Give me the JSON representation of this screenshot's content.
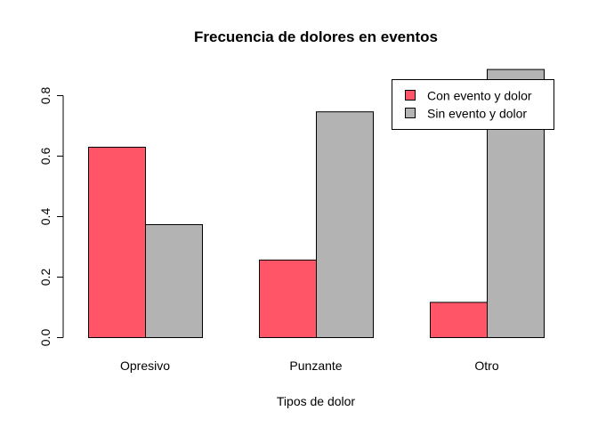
{
  "chart_data": {
    "type": "bar",
    "title": "Frecuencia de dolores en eventos",
    "xlabel": "Tipos de dolor",
    "ylabel": "",
    "categories": [
      "Opresivo",
      "Punzante",
      "Otro"
    ],
    "series": [
      {
        "name": "Con evento y dolor",
        "values": [
          0.628,
          0.255,
          0.115
        ],
        "color": "#FF5566"
      },
      {
        "name": "Sin evento y dolor",
        "values": [
          0.372,
          0.745,
          0.885
        ],
        "color": "#B3B3B3"
      }
    ],
    "yticks": [
      "0.0",
      "0.2",
      "0.4",
      "0.6",
      "0.8"
    ],
    "ylim": [
      0,
      0.8
    ],
    "grid": false,
    "legend_position": "top-right"
  }
}
